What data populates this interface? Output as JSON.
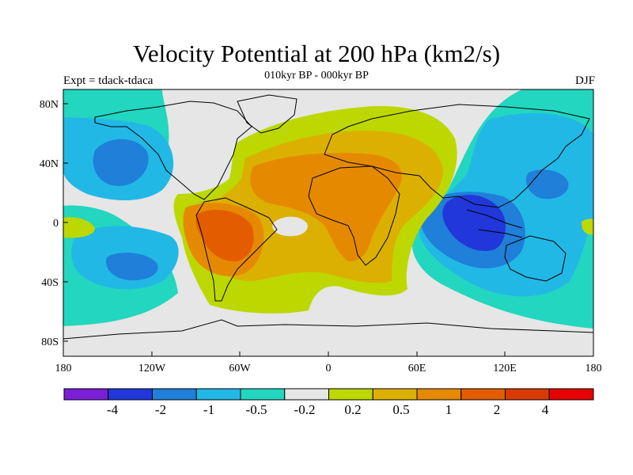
{
  "figure": {
    "title": "Velocity Potential at 200 hPa (km2/s)",
    "subtitle": "010kyr BP - 000kyr BP",
    "left_label": "Expt = tdack-tdaca",
    "right_label": "DJF"
  },
  "axes": {
    "x_ticks": [
      "180",
      "120W",
      "60W",
      "0",
      "60E",
      "120E",
      "180"
    ],
    "y_ticks": [
      "80N",
      "40N",
      "0",
      "40S",
      "80S"
    ]
  },
  "colorbar": {
    "colors": [
      "#7a1fd6",
      "#2137d9",
      "#1f7fd9",
      "#22b8e6",
      "#22d6bf",
      "#e6e6e6",
      "#bcd800",
      "#dcb000",
      "#e58a00",
      "#e35d00",
      "#d93a00",
      "#e60000"
    ],
    "labels": [
      "-4",
      "-2",
      "-1",
      "-0.5",
      "-0.2",
      "0.2",
      "0.5",
      "1",
      "2",
      "4"
    ]
  },
  "map_colors": {
    "neg_light": "#22d6bf",
    "neg_mid": "#22b8e6",
    "neg_strong": "#1f7fd9",
    "neg_max": "#2137d9",
    "neutral": "#e6e6e6",
    "pos_light": "#bcd800",
    "pos_mid": "#dcb000",
    "pos_strong": "#e58a00",
    "pos_max": "#e35d00"
  }
}
